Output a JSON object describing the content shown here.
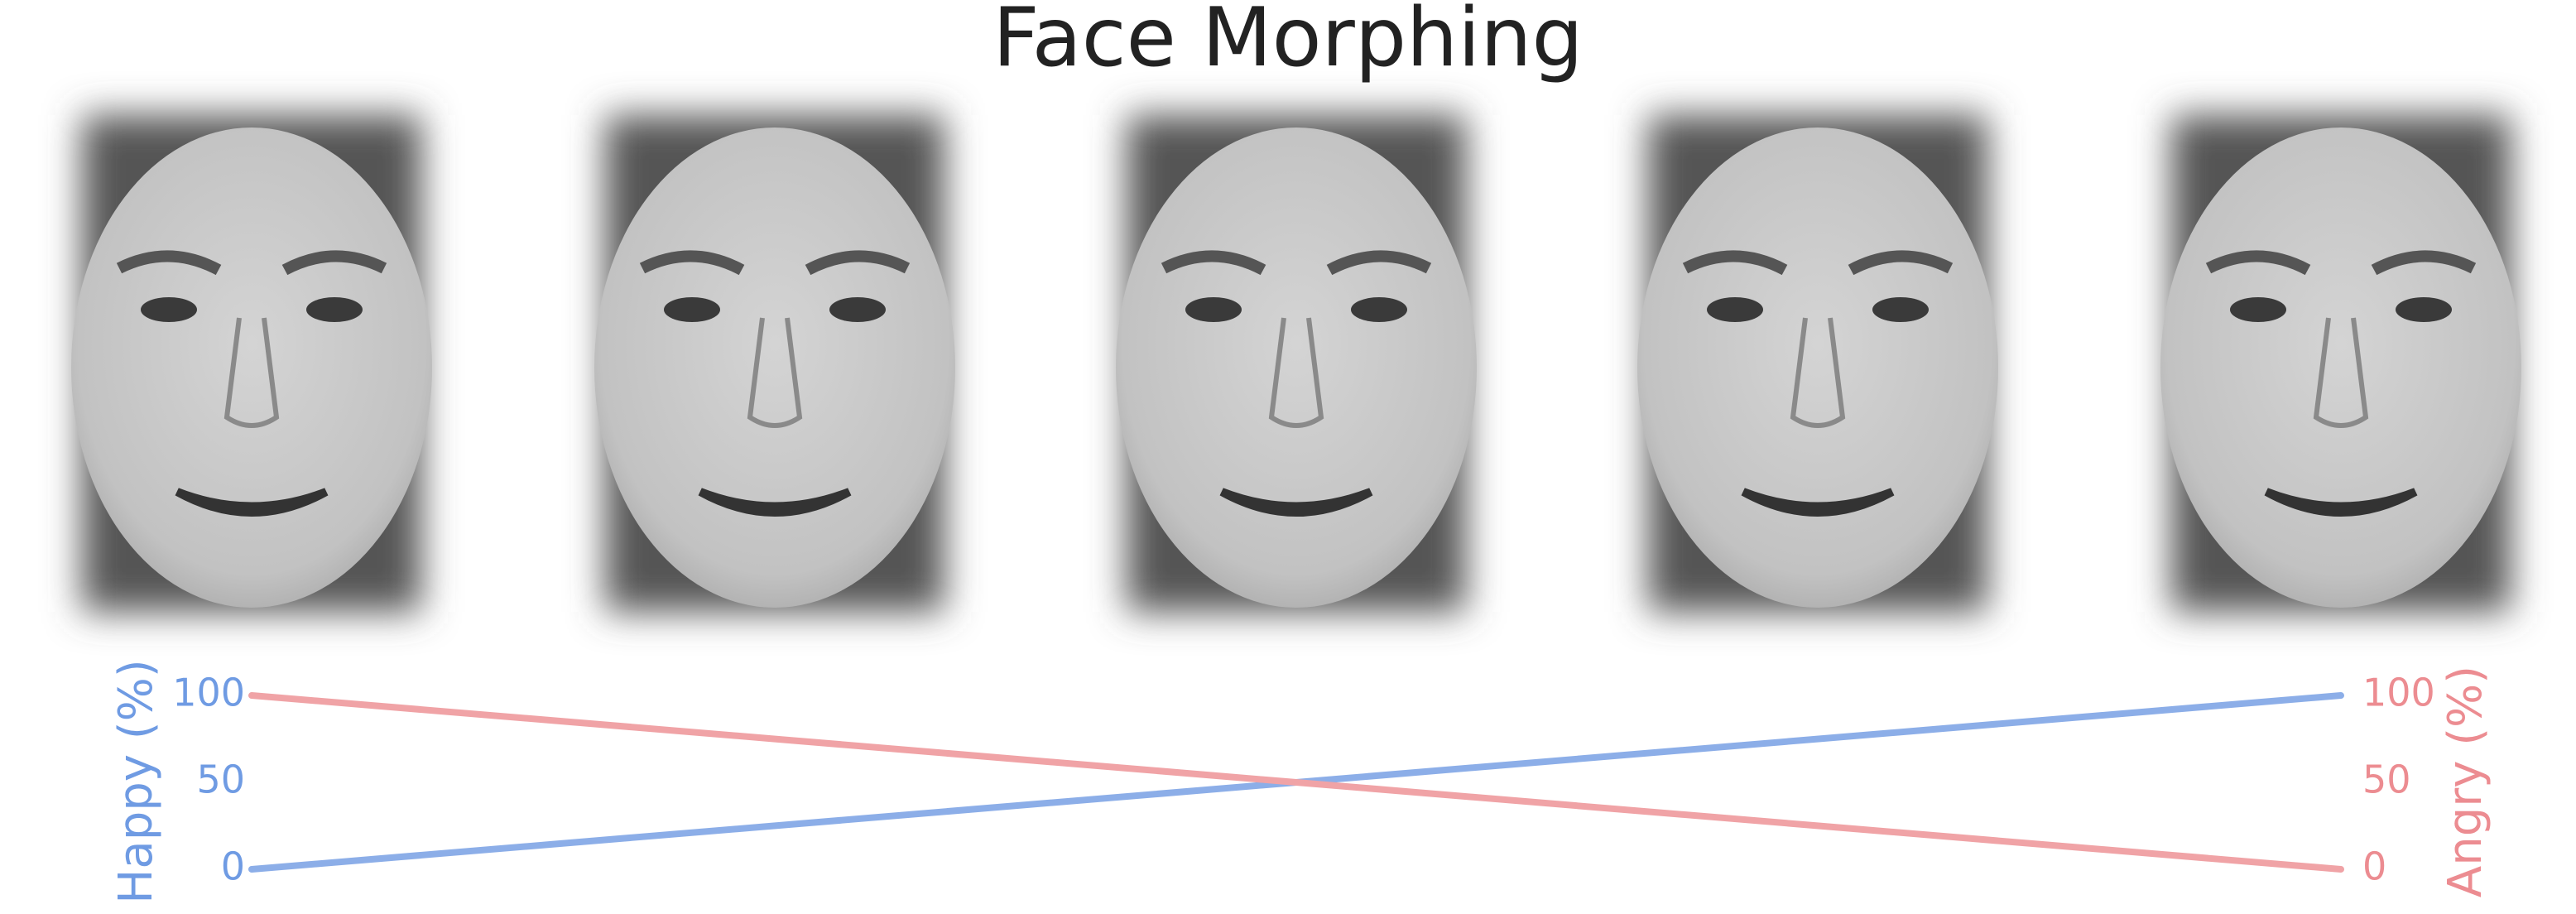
{
  "chart_data": {
    "type": "line",
    "title": "Face Morphing",
    "categories": [
      null,
      null,
      null,
      null,
      null
    ],
    "ylabel": "Happy (%)",
    "y2label": "Angry (%)",
    "ylim": [
      0,
      100
    ],
    "yticks": [
      0,
      50,
      100
    ],
    "y2lim": [
      0,
      100
    ],
    "y2ticks": [
      0,
      50,
      100
    ],
    "grid": false,
    "series": [
      {
        "name": "Happy",
        "color": "#8caee8",
        "values": [
          0,
          25,
          50,
          75,
          100
        ]
      },
      {
        "name": "Angry",
        "color": "#f0a3a6",
        "values": [
          100,
          75,
          50,
          25,
          0
        ],
        "axis": "y2"
      }
    ]
  }
}
